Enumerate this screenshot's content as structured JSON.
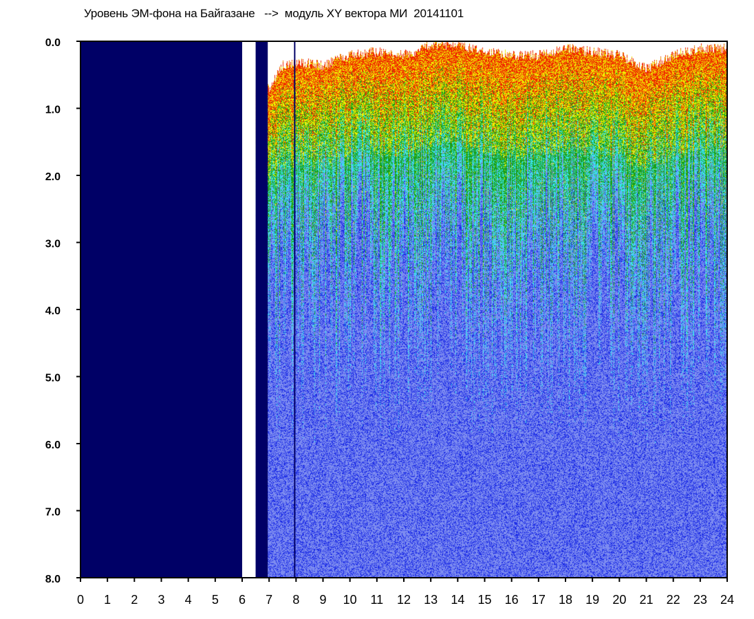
{
  "title": "Уровень ЭМ-фона на Байгазане   -->  модуль XY вектора МИ  20141101",
  "chart_data": {
    "type": "heatmap",
    "title": "Уровень ЭМ-фона на Байгазане   -->  модуль XY вектора МИ  20141101",
    "xlabel": "",
    "ylabel": "",
    "xlim": [
      0,
      24
    ],
    "ylim": [
      0,
      8
    ],
    "y_inverted": true,
    "grid": false,
    "x_ticks": [
      "0",
      "1",
      "2",
      "3",
      "4",
      "5",
      "6",
      "7",
      "8",
      "9",
      "10",
      "11",
      "12",
      "13",
      "14",
      "15",
      "16",
      "17",
      "18",
      "19",
      "20",
      "21",
      "22",
      "23",
      "24"
    ],
    "y_ticks": [
      "0.0",
      "1.0",
      "2.0",
      "3.0",
      "4.0",
      "5.0",
      "6.0",
      "7.0",
      "8.0"
    ],
    "no_data_blocks": [
      {
        "x_start": 0.0,
        "x_end": 6.0
      },
      {
        "x_start": 6.5,
        "x_end": 6.95
      }
    ],
    "marker_line_x": 7.95,
    "color_scale": [
      "#00006e",
      "#1e2ee6",
      "#7d8cf0",
      "#38e6f0",
      "#1aa01a",
      "#f0f000",
      "#f02800"
    ],
    "background_colors": {
      "no_data": "#000066",
      "gap": "#ffffff"
    },
    "signal_top_boundary": [
      [
        7.0,
        0.7
      ],
      [
        7.5,
        0.35
      ],
      [
        8.0,
        0.3
      ],
      [
        9.0,
        0.35
      ],
      [
        10.0,
        0.2
      ],
      [
        11.0,
        0.15
      ],
      [
        12.0,
        0.2
      ],
      [
        13.0,
        0.05
      ],
      [
        14.0,
        0.05
      ],
      [
        15.0,
        0.15
      ],
      [
        16.0,
        0.2
      ],
      [
        17.0,
        0.2
      ],
      [
        18.0,
        0.1
      ],
      [
        19.0,
        0.15
      ],
      [
        20.0,
        0.2
      ],
      [
        21.0,
        0.4
      ],
      [
        22.0,
        0.2
      ],
      [
        23.0,
        0.1
      ],
      [
        24.0,
        0.1
      ]
    ]
  }
}
